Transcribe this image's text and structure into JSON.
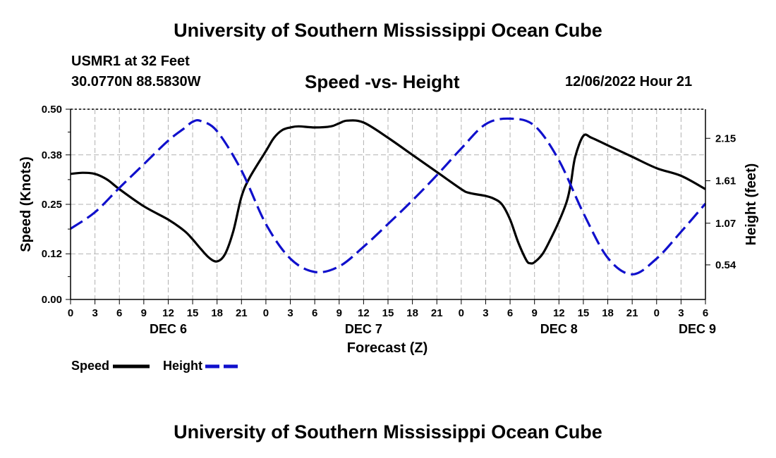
{
  "header": {
    "title": "University of Southern Mississippi Ocean Cube",
    "station": "USMR1 at 32 Feet",
    "location": "30.0770N  88.5830W",
    "subtitle": "Speed -vs- Height",
    "datetime": "12/06/2022 Hour 21"
  },
  "footer": {
    "title": "University of Southern Mississippi Ocean Cube"
  },
  "legend": {
    "speed_label": "Speed",
    "height_label": "Height"
  },
  "colors": {
    "speed": "#000000",
    "height": "#1010cc",
    "grid": "#b0b0b0"
  },
  "chart_data": {
    "type": "line",
    "title": "Speed -vs- Height",
    "xlabel": "Forecast (Z)",
    "ylabel": "Speed (Knots)",
    "y2label": "Height (feet)",
    "x_unit": "hours since DEC 6 00Z",
    "xlim": [
      0,
      78
    ],
    "ylim": [
      0,
      0.5
    ],
    "y2lim": [
      0.1,
      2.52
    ],
    "x_ticks": [
      0,
      3,
      6,
      9,
      12,
      15,
      18,
      21,
      24,
      27,
      30,
      33,
      36,
      39,
      42,
      45,
      48,
      51,
      54,
      57,
      60,
      63,
      66,
      69,
      72,
      75,
      78
    ],
    "x_tick_labels": [
      "0",
      "3",
      "6",
      "9",
      "12",
      "15",
      "18",
      "21",
      "0",
      "3",
      "6",
      "9",
      "12",
      "15",
      "18",
      "21",
      "0",
      "3",
      "6",
      "9",
      "12",
      "15",
      "18",
      "21",
      "0",
      "3",
      "6"
    ],
    "day_labels": [
      {
        "x": 12,
        "label": "DEC 6"
      },
      {
        "x": 36,
        "label": "DEC 7"
      },
      {
        "x": 60,
        "label": "DEC 8"
      },
      {
        "x": 77,
        "label": "DEC 9"
      }
    ],
    "y_ticks": [
      0.0,
      0.12,
      0.25,
      0.38,
      0.5
    ],
    "y_tick_labels": [
      "0.00",
      "0.12",
      "0.25",
      "0.38",
      "0.50"
    ],
    "y2_ticks": [
      0.54,
      1.07,
      1.61,
      2.15
    ],
    "y2_tick_labels": [
      "0.54",
      "1.07",
      "1.61",
      "2.15"
    ],
    "grid": true,
    "series": [
      {
        "name": "Speed",
        "axis": "left",
        "style": "solid",
        "x": [
          0,
          1.5,
          3,
          4.5,
          6,
          9,
          12,
          14,
          15,
          16,
          17,
          18,
          19,
          20,
          21,
          22,
          24,
          25,
          26,
          27,
          28,
          30,
          32,
          33,
          34,
          36,
          39,
          42,
          45,
          48,
          49,
          51,
          52,
          53,
          54,
          55,
          56,
          56.5,
          57,
          58,
          59,
          60,
          61,
          61.5,
          62,
          63,
          64,
          66,
          69,
          72,
          75,
          78
        ],
        "values": [
          0.33,
          0.333,
          0.33,
          0.315,
          0.29,
          0.245,
          0.21,
          0.18,
          0.158,
          0.133,
          0.11,
          0.1,
          0.12,
          0.18,
          0.27,
          0.32,
          0.39,
          0.425,
          0.445,
          0.452,
          0.455,
          0.452,
          0.455,
          0.463,
          0.47,
          0.465,
          0.425,
          0.38,
          0.335,
          0.29,
          0.28,
          0.272,
          0.265,
          0.25,
          0.21,
          0.15,
          0.103,
          0.095,
          0.098,
          0.12,
          0.16,
          0.205,
          0.26,
          0.31,
          0.375,
          0.43,
          0.425,
          0.405,
          0.375,
          0.345,
          0.325,
          0.29
        ]
      },
      {
        "name": "Height",
        "axis": "right",
        "style": "dashed",
        "x": [
          0,
          3,
          6,
          9,
          12,
          14,
          15,
          16,
          18,
          21,
          24,
          27,
          30,
          33,
          36,
          39,
          42,
          45,
          48,
          51,
          54,
          57,
          60,
          63,
          66,
          69,
          72,
          75,
          78
        ],
        "values": [
          1.0,
          1.21,
          1.52,
          1.82,
          2.12,
          2.28,
          2.36,
          2.37,
          2.24,
          1.74,
          1.06,
          0.62,
          0.45,
          0.52,
          0.77,
          1.06,
          1.36,
          1.68,
          2.02,
          2.33,
          2.4,
          2.31,
          1.87,
          1.2,
          0.63,
          0.42,
          0.62,
          0.96,
          1.32
        ]
      }
    ]
  }
}
